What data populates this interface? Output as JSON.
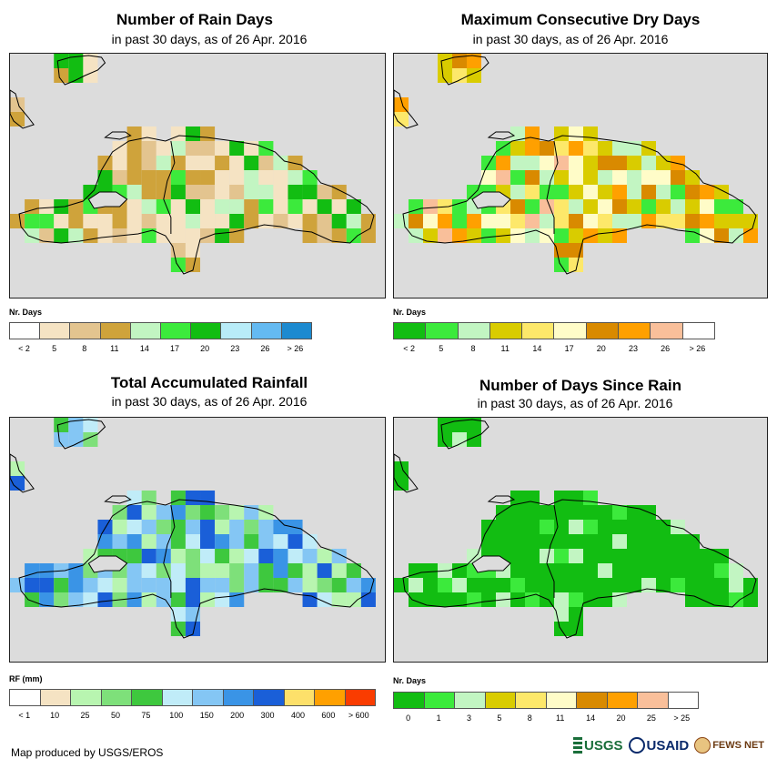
{
  "panels": [
    {
      "title": "Number of Rain Days",
      "subtitle": "in past 30 days, as of 26 Apr. 2016",
      "legend_title": "Nr. Days",
      "legend_colors": [
        "#ffffff",
        "#f5e3c3",
        "#e3c48f",
        "#cfa33b",
        "#c2f5c2",
        "#3cea3c",
        "#12bd12",
        "#b8ecf8",
        "#64baf2",
        "#1c8ad0"
      ],
      "legend_labels": [
        "< 2",
        "5",
        "8",
        "11",
        "14",
        "17",
        "20",
        "23",
        "26",
        "> 26"
      ],
      "cell_palette": [
        "#f5e3c3",
        "#f5e3c3",
        "#e3c48f",
        "#cfa33b",
        "#cfa33b",
        "#c2f5c2",
        "#3cea3c",
        "#12bd12"
      ]
    },
    {
      "title": "Maximum Consecutive Dry Days",
      "subtitle": "in past 30 days, as of 26 Apr. 2016",
      "legend_title": "Nr. Days",
      "legend_colors": [
        "#12bd12",
        "#3cea3c",
        "#c2f5c2",
        "#d9cc00",
        "#fde86a",
        "#fffcc8",
        "#d98a00",
        "#ffa000",
        "#f9bf9a",
        "#ffffff"
      ],
      "legend_labels": [
        "< 2",
        "5",
        "8",
        "11",
        "14",
        "17",
        "20",
        "23",
        "26",
        "> 26"
      ],
      "cell_palette": [
        "#d9cc00",
        "#d9cc00",
        "#fde86a",
        "#fffcc8",
        "#c2f5c2",
        "#3cea3c",
        "#ffa000",
        "#d98a00",
        "#f9bf9a"
      ]
    },
    {
      "title": "Total Accumulated Rainfall",
      "subtitle": "in past 30 days, as of 26 Apr. 2016",
      "legend_title": "RF (mm)",
      "legend_colors": [
        "#ffffff",
        "#f5e3c3",
        "#b8f5b0",
        "#7ee07a",
        "#3ec83e",
        "#c0ecf8",
        "#84c6f4",
        "#3a94e6",
        "#1a5fd8",
        "#fde06a",
        "#ffa000",
        "#fa3c00"
      ],
      "legend_labels": [
        "< 1",
        "10",
        "25",
        "50",
        "75",
        "100",
        "150",
        "200",
        "300",
        "400",
        "600",
        "> 600"
      ],
      "cell_palette": [
        "#7ee07a",
        "#b8f5b0",
        "#3ec83e",
        "#c0ecf8",
        "#84c6f4",
        "#84c6f4",
        "#3a94e6",
        "#1a5fd8"
      ]
    },
    {
      "title": "Number of Days Since Rain",
      "subtitle": "in past 30 days, as of 26 Apr. 2016",
      "legend_title": "Nr. Days",
      "legend_colors": [
        "#12bd12",
        "#3cea3c",
        "#c2f5c2",
        "#d9cc00",
        "#fde86a",
        "#fffcc8",
        "#d98a00",
        "#ffa000",
        "#f9bf9a",
        "#ffffff"
      ],
      "legend_labels": [
        "0",
        "1",
        "3",
        "5",
        "8",
        "11",
        "14",
        "20",
        "25",
        "> 25"
      ],
      "cell_palette": [
        "#12bd12",
        "#12bd12",
        "#12bd12",
        "#12bd12",
        "#12bd12",
        "#12bd12",
        "#3cea3c",
        "#c2f5c2"
      ]
    }
  ],
  "credit": "Map produced by USGS/EROS",
  "logos": {
    "usgs": "USGS",
    "usaid": "USAID",
    "fews": "FEWS NET"
  },
  "colors": {
    "map_background": "#dcdcdc",
    "outline": "#000000"
  }
}
